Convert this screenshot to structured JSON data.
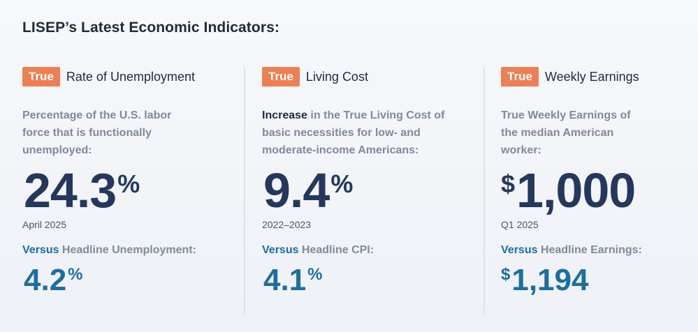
{
  "heading": "LISEP’s Latest Economic Indicators:",
  "columns": [
    {
      "badge": "True",
      "title": "Rate of Unemployment",
      "desc_lead": "",
      "desc": "Percentage of the U.S. labor force that is functionally unemployed:",
      "big_prefix": "",
      "big_value": "24.3",
      "big_suffix": "%",
      "date": "April 2025",
      "versus_word": "Versus",
      "versus_label": " Headline Unemployment:",
      "small_prefix": "",
      "small_value": "4.2",
      "small_suffix": "%"
    },
    {
      "badge": "True",
      "title": "Living Cost",
      "desc_lead": "Increase",
      "desc": " in the True Living Cost of basic necessities for low- and moderate-income Americans:",
      "big_prefix": "",
      "big_value": "9.4",
      "big_suffix": "%",
      "date": "2022–2023",
      "versus_word": "Versus",
      "versus_label": " Headline CPI:",
      "small_prefix": "",
      "small_value": "4.1",
      "small_suffix": "%"
    },
    {
      "badge": "True",
      "title": "Weekly Earnings",
      "desc_lead": "",
      "desc": "True Weekly Earnings of the median American worker:",
      "big_prefix": "$",
      "big_value": "1,000",
      "big_suffix": "",
      "date": "Q1 2025",
      "versus_word": "Versus",
      "versus_label": " Headline Earnings:",
      "small_prefix": "$",
      "small_value": "1,194",
      "small_suffix": ""
    }
  ],
  "colors": {
    "badge": "#ee7f52",
    "big_number": "#24385e",
    "versus_accent": "#1b6fa0",
    "muted_text": "#7f8a9c"
  }
}
